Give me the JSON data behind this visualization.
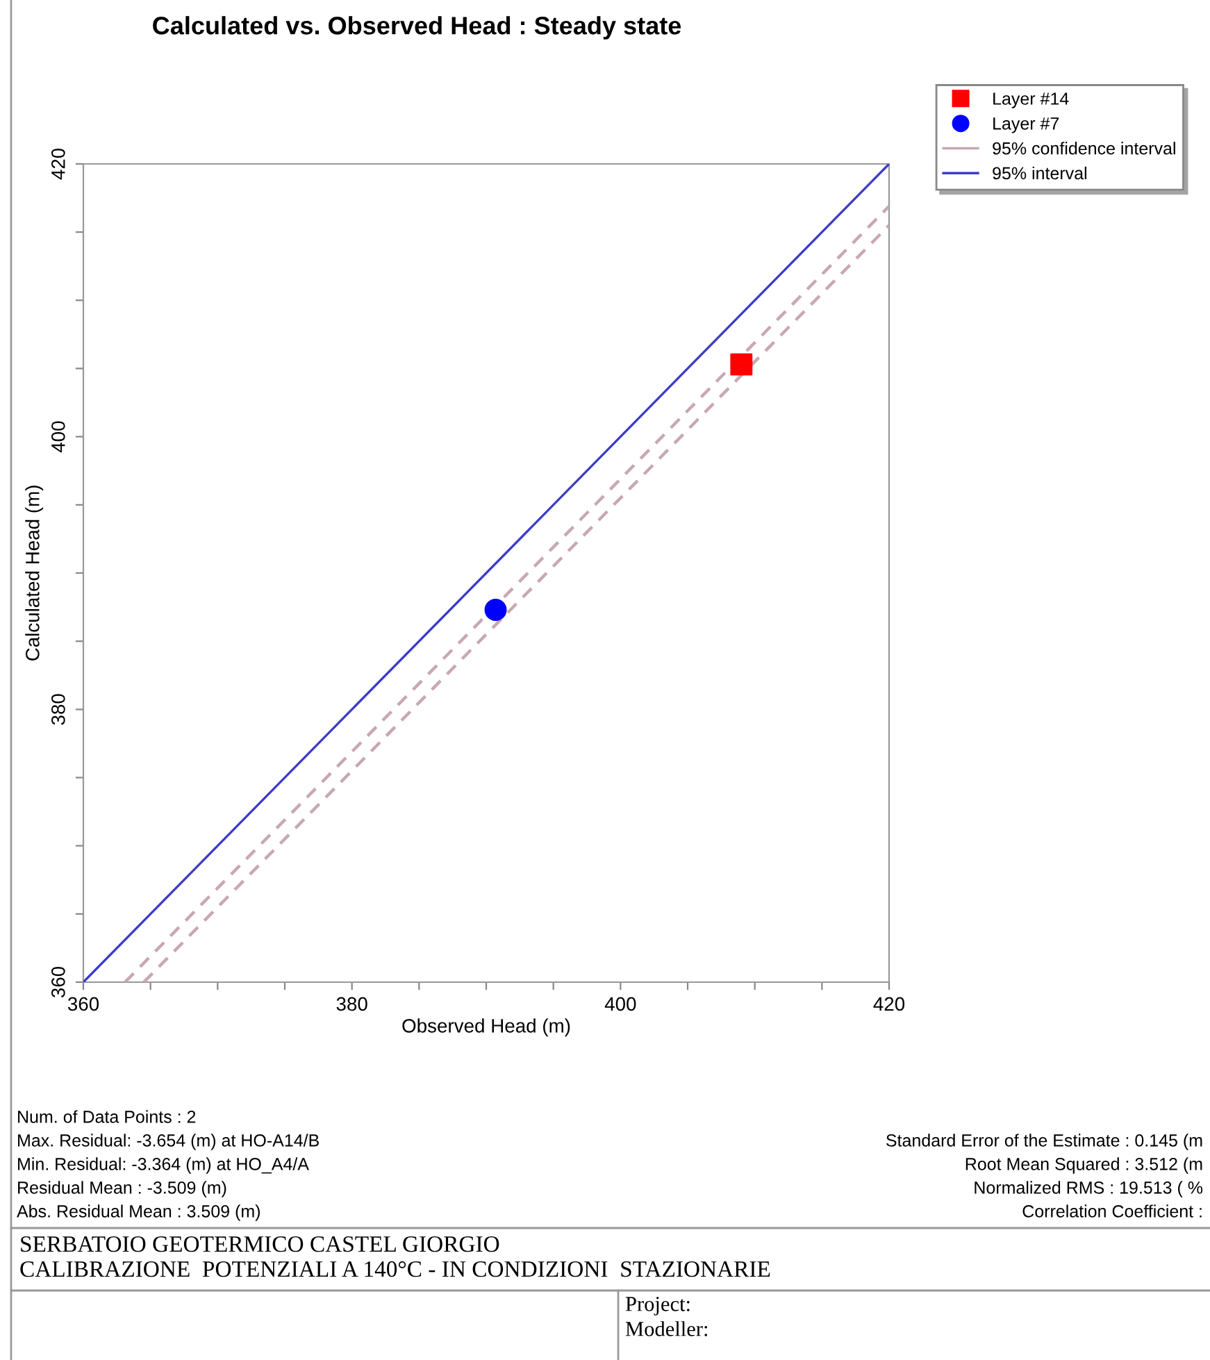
{
  "chart_data": {
    "type": "scatter",
    "title": "Calculated vs. Observed Head : Steady state",
    "xlabel": "Observed Head (m)",
    "ylabel": "Calculated Head (m)",
    "series": [
      {
        "name": "Layer #14",
        "marker": "square",
        "color": "#ff0000",
        "x": [
          409.0
        ],
        "values": [
          405.3
        ]
      },
      {
        "name": "Layer #7",
        "marker": "circle",
        "color": "#0000ff",
        "x": [
          390.7
        ],
        "values": [
          387.3
        ]
      },
      {
        "name": "95% confidence interval",
        "type": "line",
        "line_style": "dashed",
        "color": "#c8a8b0",
        "x": [
          363.1,
          420
        ],
        "values": [
          360,
          416.9
        ]
      },
      {
        "type": "line",
        "line_style": "dashed",
        "color": "#c8a8b0",
        "x": [
          364.5,
          420
        ],
        "values": [
          360,
          415.5
        ]
      },
      {
        "name": "95% interval",
        "type": "line",
        "line_style": "solid",
        "color": "#3c3cc8",
        "x": [
          360,
          420
        ],
        "values": [
          360,
          420
        ]
      }
    ],
    "xlim": [
      360,
      420
    ],
    "ylim": [
      360,
      420
    ],
    "xticks": [
      360,
      {
        "value": 365,
        "label": null
      },
      {
        "value": 370,
        "label": null
      },
      {
        "value": 375,
        "label": null
      },
      380,
      {
        "value": 385,
        "label": null
      },
      {
        "value": 390,
        "label": null
      },
      {
        "value": 395,
        "label": null
      },
      400,
      {
        "value": 405,
        "label": null
      },
      {
        "value": 410,
        "label": null
      },
      {
        "value": 415,
        "label": null
      },
      420
    ],
    "yticks": [
      360,
      {
        "value": 365,
        "label": null
      },
      {
        "value": 370,
        "label": null
      },
      {
        "value": 375,
        "label": null
      },
      380,
      {
        "value": 385,
        "label": null
      },
      {
        "value": 390,
        "label": null
      },
      {
        "value": 395,
        "label": null
      },
      400,
      {
        "value": 405,
        "label": null
      },
      {
        "value": 410,
        "label": null
      },
      {
        "value": 415,
        "label": null
      },
      420
    ],
    "grid": false,
    "legend": "top right",
    "annotations": [
      "Num. of Data Points : 2",
      "Max. Residual: -3.654 (m) at HO-A14/B",
      "Min. Residual: -3.364 (m) at HO_A4/A",
      "Residual Mean : -3.509 (m)",
      "Abs. Residual Mean : 3.509 (m)",
      "Standard Error of the Estimate : 0.145 (m",
      "Root Mean Squared : 3.512 (m",
      "Normalized RMS : 19.513 ( %",
      "Correlation Coefficient :",
      "SERBATOIO GEOTERMICO CASTEL GIORGIO",
      "CALIBRAZIONE  POTENZIALI A 140°C - IN CONDIZIONI  STAZIONARIE",
      "Project:",
      "Modeller:"
    ]
  }
}
